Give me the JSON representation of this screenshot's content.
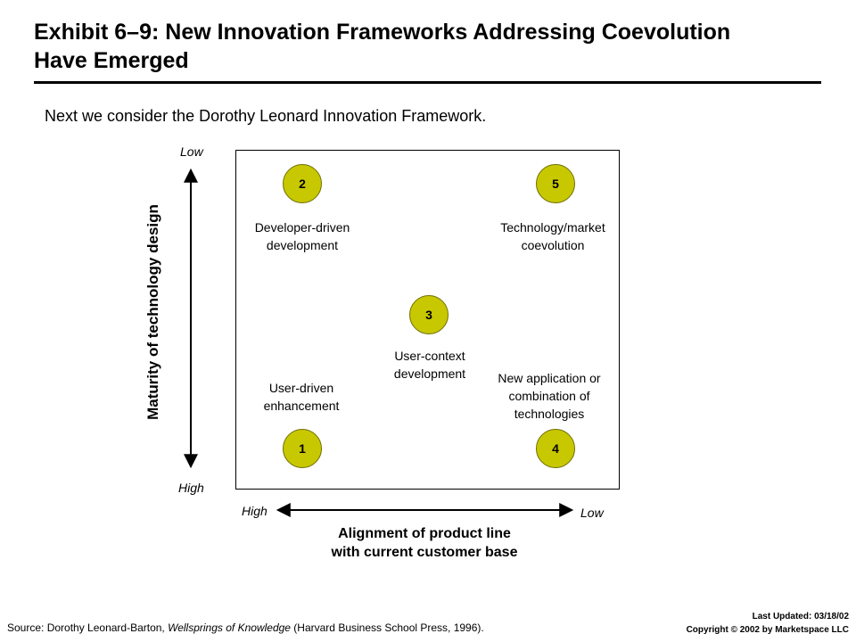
{
  "header": {
    "title_line1": "Exhibit 6–9: New Innovation Frameworks Addressing Coevolution",
    "title_line2": "Have Emerged",
    "intro": "Next we consider the Dorothy Leonard Innovation Framework."
  },
  "y_axis": {
    "label": "Maturity of technology design",
    "top": "Low",
    "bottom": "High"
  },
  "x_axis": {
    "label_line1": "Alignment of product line",
    "label_line2": "with current customer base",
    "left": "High",
    "right": "Low"
  },
  "circle_color": "#c8c800",
  "quadrants": [
    {
      "number": "2",
      "line1": "Developer-driven",
      "line2": "development"
    },
    {
      "number": "5",
      "line1": "Technology/market",
      "line2": "coevolution"
    },
    {
      "number": "3",
      "line1": "User-context",
      "line2": "development"
    },
    {
      "number": "1",
      "line1": "User-driven",
      "line2": "enhancement"
    },
    {
      "number": "4",
      "line1": "New application or",
      "line2": "combination of",
      "line3": "technologies"
    }
  ],
  "footer": {
    "source_prefix": "Source: Dorothy Leonard-Barton, ",
    "source_title": "Wellsprings of Knowledge",
    "source_suffix": " (Harvard Business School Press, 1996).",
    "last_updated": "Last Updated: 03/18/02",
    "copyright": "Copyright © 2002 by Marketspace LLC"
  }
}
